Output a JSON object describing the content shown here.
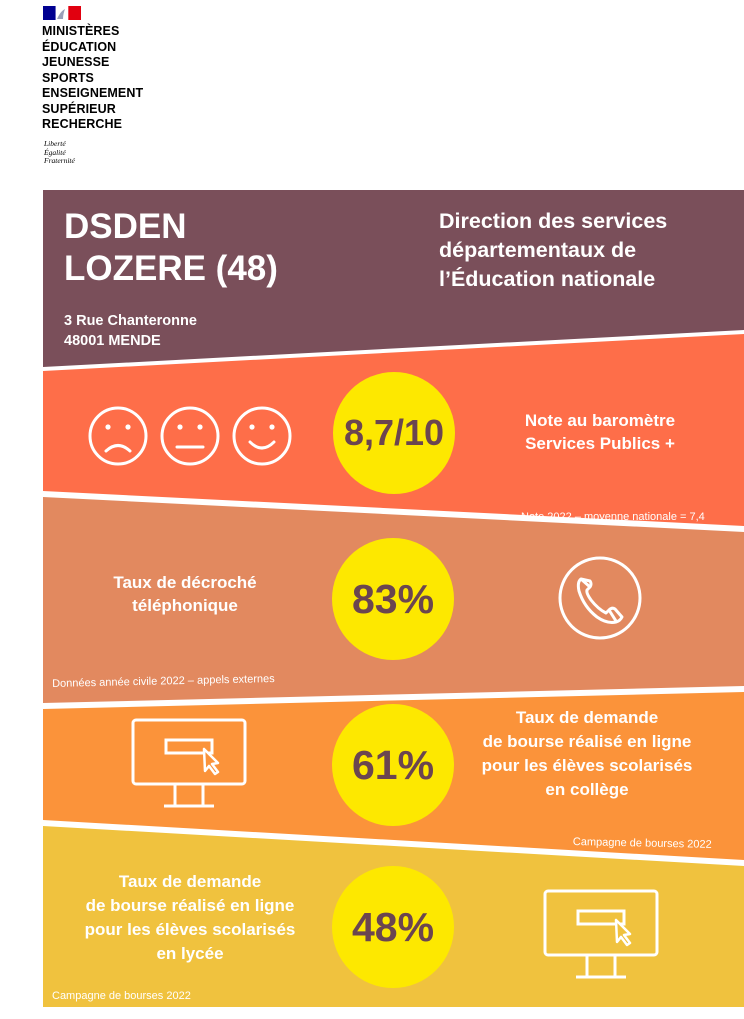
{
  "logo": {
    "ministry_lines": [
      "MINISTÈRES",
      "ÉDUCATION",
      "JEUNESSE",
      "SPORTS",
      "ENSEIGNEMENT",
      "SUPÉRIEUR",
      "RECHERCHE"
    ],
    "motto_lines": [
      "Liberté",
      "Égalité",
      "Fraternité"
    ]
  },
  "header": {
    "title_line1": "DSDEN",
    "title_line2": "LOZERE (48)",
    "address_line1": "3 Rue Chanteronne",
    "address_line2": "48001 MENDE",
    "subtitle_line1": "Direction des services",
    "subtitle_line2": "départementaux de",
    "subtitle_line3": "l’Éducation nationale"
  },
  "indicators": [
    {
      "value": "8,7/10",
      "label_lines": [
        "Note au baromètre",
        "Services Publics +"
      ],
      "note": "Note 2022 – moyenne nationale = 7,4",
      "icons": [
        "sad-face-icon",
        "neutral-face-icon",
        "happy-face-icon"
      ]
    },
    {
      "value": "83%",
      "label_lines": [
        "Taux de décroché",
        "téléphonique"
      ],
      "note": "Données année civile 2022 – appels externes",
      "icons": [
        "phone-icon"
      ]
    },
    {
      "value": "61%",
      "label_lines": [
        "Taux de demande",
        "de bourse réalisé en ligne",
        "pour les élèves scolarisés",
        "en collège"
      ],
      "note": "Campagne de bourses 2022",
      "icons": [
        "computer-icon"
      ]
    },
    {
      "value": "48%",
      "label_lines": [
        "Taux de demande",
        "de bourse réalisé en ligne",
        "pour les élèves scolarisés",
        "en lycée"
      ],
      "note": "Campagne de bourses 2022",
      "icons": [
        "computer-icon"
      ]
    }
  ],
  "colors": {
    "header_band": "#7a4f5a",
    "band1": "#fe6e49",
    "band2": "#e2895f",
    "band3": "#fb933a",
    "band4": "#f0c23e",
    "circle": "#fde800",
    "value_text": "#6b4550"
  }
}
